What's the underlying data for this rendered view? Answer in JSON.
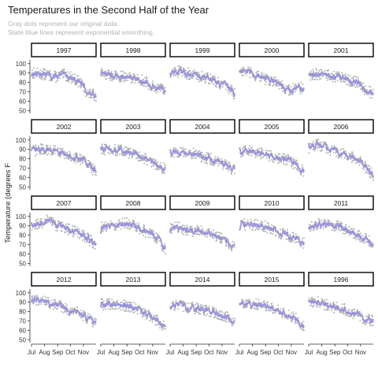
{
  "header": {
    "title": "Temperatures in the Second Half of the Year",
    "subtitle_lines": [
      "Gray dots represent our original data.",
      "State blue lines represent exponential smoothing."
    ]
  },
  "chart_data": {
    "type": "line",
    "title": "Temperatures in the Second Half of the Year",
    "ylabel": "Temperature (degrees F",
    "xlabel": "",
    "ylim": [
      47,
      104
    ],
    "yticks": [
      50,
      60,
      70,
      80,
      90,
      100
    ],
    "xlim": [
      0,
      153
    ],
    "xticks": [
      {
        "label": "Jul",
        "day": 0
      },
      {
        "label": "Aug",
        "day": 31
      },
      {
        "label": "Sep",
        "day": 62
      },
      {
        "label": "Oct",
        "day": 92
      },
      {
        "label": "Nov",
        "day": 123
      }
    ],
    "grid": false,
    "facet_layout": {
      "rows": 4,
      "cols": 5
    },
    "colors": {
      "points": "#a8a8a8",
      "smooth_line": "#9a95d9",
      "strip_border": "#000000",
      "axis": "#333333"
    },
    "panels": [
      {
        "year": "1997",
        "profile": [
          90,
          89,
          88,
          86,
          88,
          85,
          80,
          68,
          66
        ]
      },
      {
        "year": "1998",
        "profile": [
          90,
          88,
          86,
          86,
          85,
          83,
          78,
          74,
          70
        ]
      },
      {
        "year": "1999",
        "profile": [
          91,
          92,
          90,
          88,
          86,
          84,
          80,
          75,
          68
        ]
      },
      {
        "year": "2000",
        "profile": [
          93,
          91,
          87,
          84,
          82,
          78,
          72,
          73,
          75
        ]
      },
      {
        "year": "2001",
        "profile": [
          88,
          89,
          88,
          86,
          86,
          82,
          80,
          72,
          68
        ]
      },
      {
        "year": "2002",
        "profile": [
          88,
          90,
          90,
          88,
          86,
          82,
          80,
          74,
          65
        ]
      },
      {
        "year": "2003",
        "profile": [
          90,
          90,
          89,
          88,
          85,
          82,
          78,
          72,
          70
        ]
      },
      {
        "year": "2004",
        "profile": [
          87,
          87,
          86,
          85,
          82,
          80,
          77,
          73,
          68
        ]
      },
      {
        "year": "2005",
        "profile": [
          88,
          89,
          87,
          85,
          83,
          80,
          78,
          74,
          66
        ]
      },
      {
        "year": "2006",
        "profile": [
          92,
          95,
          93,
          88,
          86,
          83,
          79,
          72,
          62
        ]
      },
      {
        "year": "2007",
        "profile": [
          88,
          92,
          98,
          90,
          88,
          85,
          82,
          76,
          70
        ]
      },
      {
        "year": "2008",
        "profile": [
          88,
          89,
          92,
          93,
          90,
          86,
          82,
          76,
          66
        ]
      },
      {
        "year": "2009",
        "profile": [
          88,
          88,
          86,
          84,
          84,
          82,
          78,
          72,
          68
        ]
      },
      {
        "year": "2010",
        "profile": [
          90,
          92,
          91,
          90,
          87,
          82,
          80,
          76,
          72
        ]
      },
      {
        "year": "2011",
        "profile": [
          90,
          92,
          92,
          91,
          89,
          84,
          80,
          76,
          72
        ]
      },
      {
        "year": "2012",
        "profile": [
          93,
          92,
          90,
          88,
          84,
          80,
          78,
          72,
          68
        ]
      },
      {
        "year": "2013",
        "profile": [
          87,
          88,
          88,
          86,
          84,
          80,
          76,
          70,
          64
        ]
      },
      {
        "year": "2014",
        "profile": [
          86,
          86,
          85,
          84,
          82,
          80,
          78,
          74,
          70
        ]
      },
      {
        "year": "2015",
        "profile": [
          88,
          90,
          88,
          86,
          84,
          80,
          76,
          72,
          64
        ]
      },
      {
        "year": "1996",
        "profile": [
          90,
          90,
          88,
          85,
          84,
          80,
          76,
          72,
          70
        ]
      }
    ]
  }
}
